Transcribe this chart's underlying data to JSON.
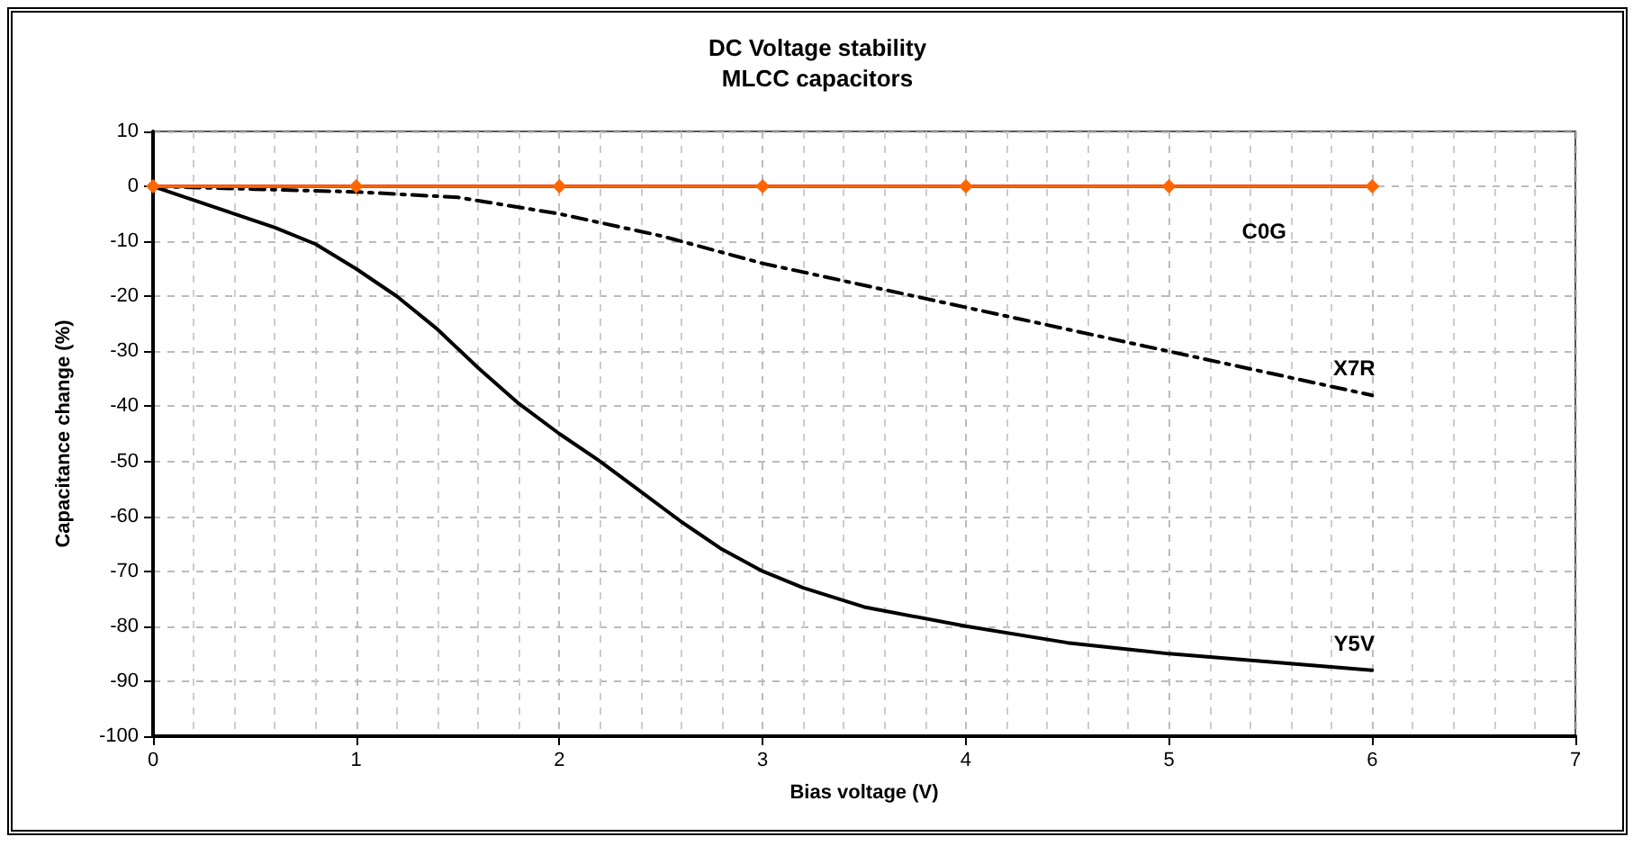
{
  "chart_data": {
    "type": "line",
    "title": "DC Voltage stability",
    "subtitle": "MLCC capacitors",
    "xlabel": "Bias voltage (V)",
    "ylabel": "Capacitance change (%)",
    "xlim": [
      0,
      7
    ],
    "xticks": [
      0,
      1,
      2,
      3,
      4,
      5,
      6,
      7
    ],
    "ylim": [
      -100,
      10
    ],
    "yticks": [
      -100,
      -90,
      -80,
      -70,
      -60,
      -50,
      -40,
      -30,
      -20,
      -10,
      0,
      10
    ],
    "grid": true,
    "legend": false,
    "series": [
      {
        "name": "Y5V",
        "color": "#000000",
        "line_style": "solid",
        "marker": "none",
        "x": [
          0,
          0.2,
          0.4,
          0.6,
          0.8,
          1,
          1.2,
          1.4,
          1.6,
          1.8,
          2,
          2.2,
          2.4,
          2.6,
          2.8,
          3,
          3.2,
          3.5,
          4,
          4.5,
          5,
          5.5,
          6
        ],
        "values": [
          0,
          -2.5,
          -5,
          -7.5,
          -10.5,
          -15,
          -20,
          -26,
          -33,
          -39.5,
          -45,
          -50,
          -55.5,
          -61,
          -66,
          -70,
          -73,
          -76.5,
          -80,
          -83,
          -85,
          -86.5,
          -88
        ]
      },
      {
        "name": "X7R",
        "color": "#000000",
        "line_style": "dashed",
        "marker": "none",
        "x": [
          0,
          0.5,
          1,
          1.5,
          2,
          2.5,
          3,
          3.5,
          4,
          4.5,
          5,
          5.5,
          6
        ],
        "values": [
          0,
          -0.5,
          -1,
          -2,
          -5,
          -9,
          -14,
          -18,
          -22,
          -26,
          -30,
          -34,
          -38
        ]
      },
      {
        "name": "C0G",
        "color": "#e02020",
        "line_style": "solid",
        "marker": "none",
        "x": [
          0,
          6
        ],
        "values": [
          0,
          0
        ]
      },
      {
        "color": "#ff6600",
        "line_style": "solid",
        "marker": "diamond",
        "x": [
          0,
          1,
          2,
          3,
          4,
          5,
          6
        ],
        "values": [
          0,
          0,
          0,
          0,
          0,
          0,
          0
        ]
      }
    ]
  }
}
